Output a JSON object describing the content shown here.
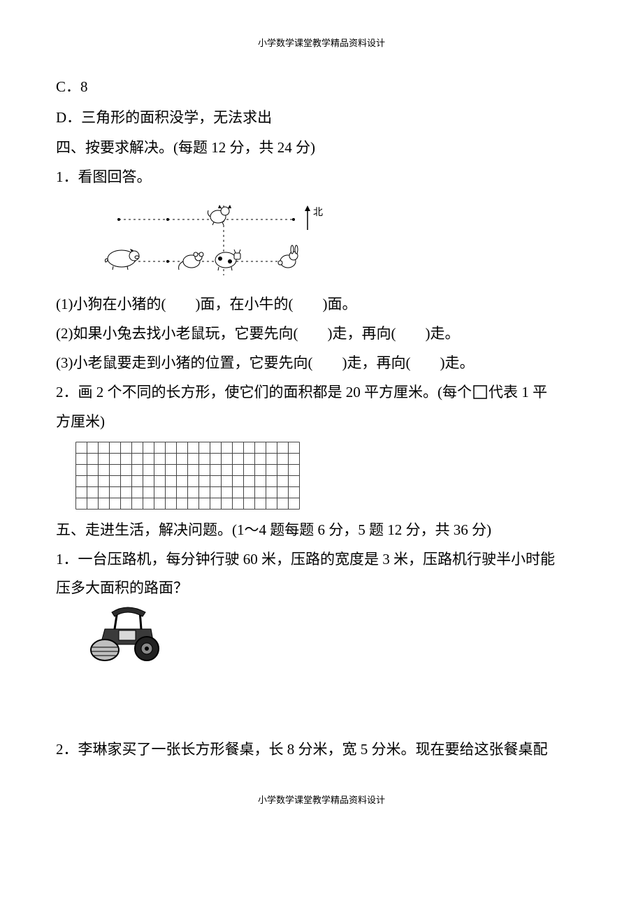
{
  "header": "小学数学课堂教学精品资料设计",
  "footer": "小学数学课堂教学精品资料设计",
  "optC": "C．8",
  "optD": "D．三角形的面积没学，无法求出",
  "sec4": "四、按要求解决。(每题 12 分，共 24 分)",
  "q4_1": "1．看图回答。",
  "diagram": {
    "north_label": "北",
    "animals": {
      "pig": "pig",
      "dog": "dog",
      "mouse": "mouse",
      "cow": "cow",
      "rabbit": "rabbit"
    },
    "stroke": "#000000"
  },
  "q4_1_1": "(1)小狗在小猪的(　　)面，在小牛的(　　)面。",
  "q4_1_2": "(2)如果小兔去找小老鼠玩，它要先向(　　)走，再向(　　)走。",
  "q4_1_3": "(3)小老鼠要走到小猪的位置，它要先向(　　)走，再向(　　)走。",
  "q4_2a": "2．画 2 个不同的长方形，使它们的面积都是 20 平方厘米。(每个",
  "q4_2b": "代表 1 平",
  "q4_2c": "方厘米)",
  "grid": {
    "cols": 20,
    "rows": 6,
    "cell": 16,
    "stroke": "#444444"
  },
  "sec5": "五、走进生活，解决问题。(1～4 题每题 6 分，5 题 12 分，共 36 分)",
  "q5_1a": "1．一台压路机，每分钟行驶 60 米，压路的宽度是 3 米，压路机行驶半小时能",
  "q5_1b": "压多大面积的路面？",
  "q5_2": "2．李琳家买了一张长方形餐桌，长 8 分米，宽 5 分米。现在要给这张餐桌配"
}
